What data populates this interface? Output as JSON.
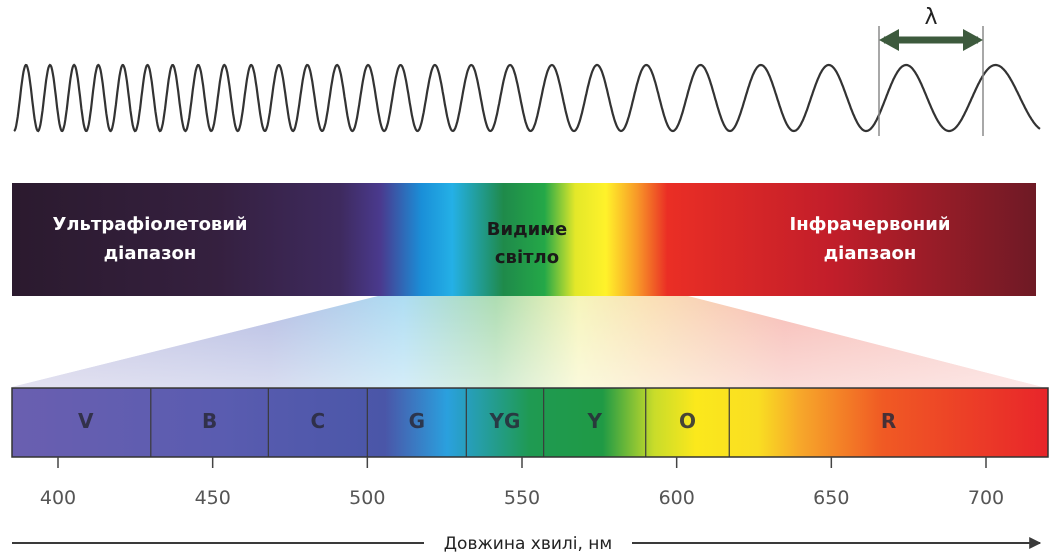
{
  "wave": {
    "lambda_symbol": "λ"
  },
  "band": {
    "uv_line1": "Ультрафіолетовий",
    "uv_line2": "діапазон",
    "visible_line1": "Видиме",
    "visible_line2": "світло",
    "ir_line1": "Інфрачервоний",
    "ir_line2": "діапзаон"
  },
  "segments": [
    {
      "label": "V",
      "from": 388,
      "to": 430,
      "color": "#6a5fb0"
    },
    {
      "label": "B",
      "from": 430,
      "to": 468,
      "color": "#4d56a8"
    },
    {
      "label": "C",
      "from": 468,
      "to": 500,
      "color": "#1aa9e0"
    },
    {
      "label": "G",
      "from": 500,
      "to": 532,
      "color": "#1d9a45"
    },
    {
      "label": "YG",
      "from": 532,
      "to": 557,
      "color": "#b4d132"
    },
    {
      "label": "Y",
      "from": 557,
      "to": 590,
      "color": "#f9e61a"
    },
    {
      "label": "O",
      "from": 590,
      "to": 617,
      "color": "#f7b52a"
    },
    {
      "label": "R",
      "from": 617,
      "to": 727,
      "color": "#ee2b26"
    }
  ],
  "axis": {
    "ticks": [
      "400",
      "450",
      "500",
      "550",
      "600",
      "650",
      "700"
    ],
    "tick_values": [
      400,
      450,
      500,
      550,
      600,
      650,
      700
    ],
    "range": [
      388,
      727
    ],
    "title": "Довжина хвилі, нм"
  }
}
